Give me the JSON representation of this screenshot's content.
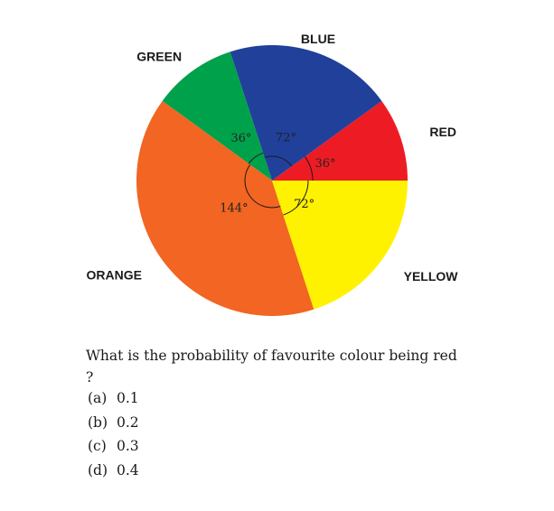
{
  "chart_data": {
    "type": "pie",
    "title": "",
    "slices": [
      {
        "label": "RED",
        "angle_label": "36°",
        "value": 36,
        "color": "#ed1c24"
      },
      {
        "label": "BLUE",
        "angle_label": "72°",
        "value": 72,
        "color": "#21409a"
      },
      {
        "label": "GREEN",
        "angle_label": "36°",
        "value": 36,
        "color": "#00a14b"
      },
      {
        "label": "ORANGE",
        "angle_label": "144°",
        "value": 144,
        "color": "#f26522"
      },
      {
        "label": "YELLOW",
        "angle_label": "72°",
        "value": 72,
        "color": "#fff200"
      }
    ],
    "units": "degrees",
    "start_angle": 0,
    "direction": "counterclockwise"
  },
  "question": {
    "text": "What is the probability of favourite colour being red",
    "text_end": "?"
  },
  "options": [
    {
      "letter": "(a)",
      "value": "0.1"
    },
    {
      "letter": "(b)",
      "value": "0.2"
    },
    {
      "letter": "(c)",
      "value": "0.3"
    },
    {
      "letter": "(d)",
      "value": "0.4"
    }
  ]
}
